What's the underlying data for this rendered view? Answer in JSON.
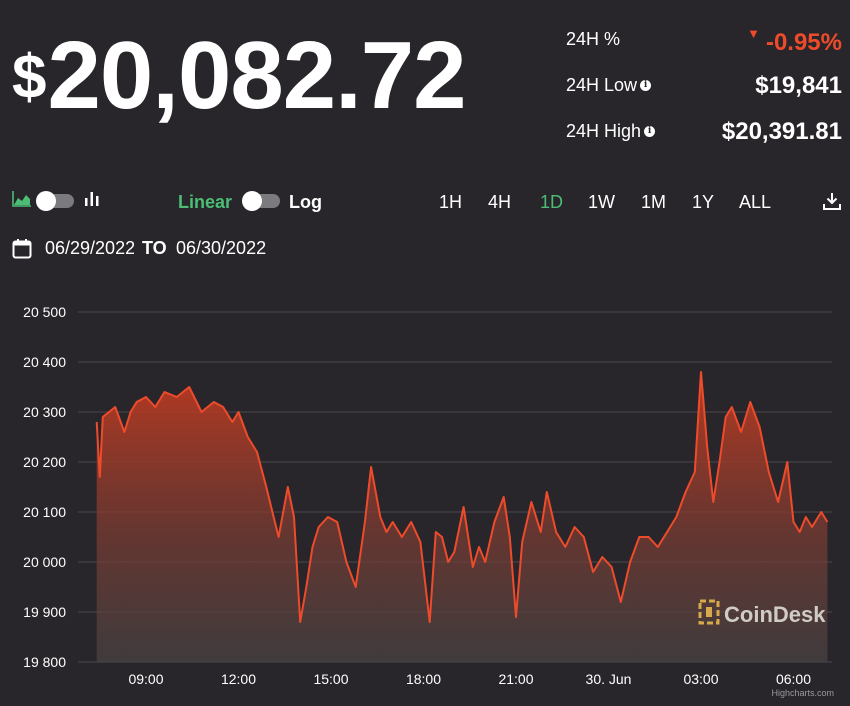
{
  "price": {
    "currency": "$",
    "value": "20,082.72"
  },
  "stats": [
    {
      "label": "24H %",
      "value": "-0.95%",
      "negative": true,
      "info": false
    },
    {
      "label": "24H Low",
      "value": "$19,841",
      "negative": false,
      "info": true
    },
    {
      "label": "24H High",
      "value": "$20,391.81",
      "negative": false,
      "info": true
    }
  ],
  "scale": {
    "linear": "Linear",
    "log": "Log"
  },
  "ranges": [
    "1H",
    "4H",
    "1D",
    "1W",
    "1M",
    "1Y",
    "ALL"
  ],
  "active_range": "1D",
  "dates": {
    "from": "06/29/2022",
    "to_label": "TO",
    "to": "06/30/2022"
  },
  "watermark": "CoinDesk",
  "credit": "Highcharts.com",
  "colors": {
    "accent_green": "#4bbd75",
    "line": "#ee4b2b",
    "negative": "#ee4b2b",
    "background": "#28262a"
  },
  "icons": {
    "area_chart": "area-chart-icon",
    "bar_chart": "bar-chart-icon",
    "calendar": "calendar-icon",
    "download": "download-icon",
    "info": "info-icon"
  },
  "chart_data": {
    "type": "area",
    "x_ticks": [
      "09:00",
      "12:00",
      "15:00",
      "18:00",
      "21:00",
      "30. Jun",
      "03:00",
      "06:00"
    ],
    "y_ticks": [
      "20 500",
      "20 400",
      "20 300",
      "20 200",
      "20 100",
      "20 000",
      "19 900",
      "19 800"
    ],
    "ylim": [
      19800,
      20500
    ],
    "x_hours": [
      7.4,
      7.5,
      7.6,
      7.8,
      8.0,
      8.3,
      8.5,
      8.7,
      9.0,
      9.3,
      9.6,
      10.0,
      10.4,
      10.8,
      11.2,
      11.5,
      11.8,
      12.0,
      12.3,
      12.6,
      12.9,
      13.1,
      13.3,
      13.6,
      13.8,
      14.0,
      14.2,
      14.4,
      14.6,
      14.9,
      15.2,
      15.5,
      15.8,
      16.1,
      16.3,
      16.6,
      16.8,
      17.0,
      17.3,
      17.6,
      17.9,
      18.2,
      18.4,
      18.6,
      18.8,
      19.0,
      19.3,
      19.6,
      19.8,
      20.0,
      20.3,
      20.6,
      20.8,
      21.0,
      21.2,
      21.5,
      21.8,
      22.0,
      22.3,
      22.6,
      22.9,
      23.2,
      23.5,
      23.8,
      24.1,
      24.4,
      24.7,
      25.0,
      25.3,
      25.6,
      25.9,
      26.2,
      26.5,
      26.8,
      27.0,
      27.2,
      27.4,
      27.6,
      27.8,
      28.0,
      28.3,
      28.6,
      28.9,
      29.2,
      29.5,
      29.8,
      30.0,
      30.2,
      30.4,
      30.6,
      30.9,
      31.1
    ],
    "values": [
      20280,
      20170,
      20290,
      20300,
      20310,
      20260,
      20300,
      20320,
      20330,
      20310,
      20340,
      20330,
      20350,
      20300,
      20320,
      20310,
      20280,
      20300,
      20250,
      20220,
      20150,
      20100,
      20050,
      20150,
      20090,
      19880,
      19950,
      20030,
      20070,
      20090,
      20080,
      20000,
      19950,
      20080,
      20190,
      20090,
      20060,
      20080,
      20050,
      20080,
      20040,
      19880,
      20060,
      20050,
      20000,
      20020,
      20110,
      19990,
      20030,
      20000,
      20080,
      20130,
      20050,
      19890,
      20040,
      20120,
      20060,
      20140,
      20060,
      20030,
      20070,
      20050,
      19980,
      20010,
      19990,
      19920,
      20000,
      20050,
      20050,
      20030,
      20060,
      20090,
      20140,
      20180,
      20380,
      20230,
      20120,
      20200,
      20290,
      20310,
      20260,
      20320,
      20270,
      20180,
      20120,
      20200,
      20080,
      20060,
      20090,
      20070,
      20100,
      20080
    ]
  }
}
